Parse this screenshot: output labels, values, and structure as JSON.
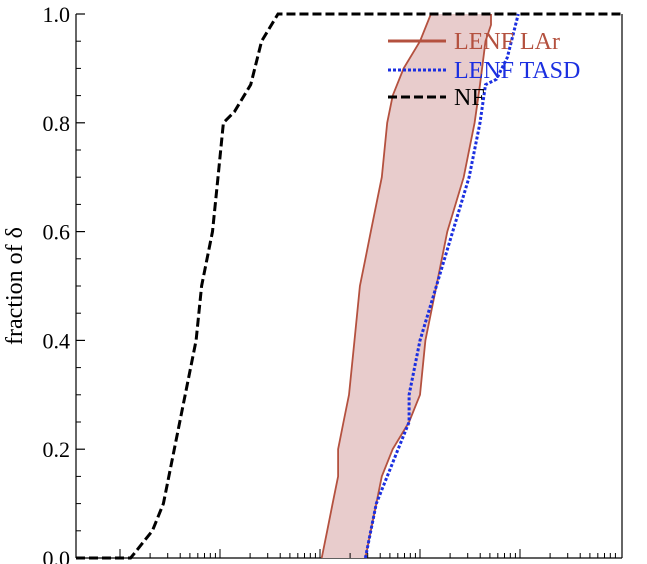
{
  "chart_data": {
    "type": "area",
    "title": "",
    "xlabel": "",
    "ylabel": "fraction of δ",
    "xscale": "log",
    "ylim": [
      0,
      1.0
    ],
    "yticks": [
      "0.0",
      "0.2",
      "0.4",
      "0.6",
      "0.8",
      "1.0"
    ],
    "grid": false,
    "legend_position": "top-right",
    "colors": {
      "lar": "#b4513f",
      "lar_fill": "#e8cccc",
      "tasd": "#1b2fe0",
      "nf": "#000000"
    },
    "series": [
      {
        "name": "NF",
        "style": "dashed",
        "points": [
          [
            0.0,
            0.0
          ],
          [
            0.1,
            0.0
          ],
          [
            0.14,
            0.05
          ],
          [
            0.16,
            0.1
          ],
          [
            0.18,
            0.2
          ],
          [
            0.2,
            0.3
          ],
          [
            0.22,
            0.4
          ],
          [
            0.23,
            0.5
          ],
          [
            0.25,
            0.6
          ],
          [
            0.26,
            0.7
          ],
          [
            0.27,
            0.8
          ],
          [
            0.29,
            0.82
          ],
          [
            0.32,
            0.87
          ],
          [
            0.34,
            0.95
          ],
          [
            0.37,
            1.0
          ],
          [
            1.0,
            1.0
          ]
        ]
      },
      {
        "name": "LENF TASD",
        "style": "dotted",
        "points": [
          [
            0.53,
            0.0
          ],
          [
            0.54,
            0.05
          ],
          [
            0.55,
            0.1
          ],
          [
            0.57,
            0.15
          ],
          [
            0.59,
            0.2
          ],
          [
            0.61,
            0.25
          ],
          [
            0.61,
            0.3
          ],
          [
            0.63,
            0.4
          ],
          [
            0.66,
            0.5
          ],
          [
            0.69,
            0.6
          ],
          [
            0.72,
            0.7
          ],
          [
            0.74,
            0.8
          ],
          [
            0.75,
            0.87
          ],
          [
            0.77,
            0.88
          ],
          [
            0.79,
            0.92
          ],
          [
            0.8,
            0.96
          ],
          [
            0.81,
            1.0
          ]
        ]
      },
      {
        "name": "LENF LAr",
        "style": "band",
        "lower": [
          [
            0.45,
            0.0
          ],
          [
            0.46,
            0.05
          ],
          [
            0.47,
            0.1
          ],
          [
            0.48,
            0.15
          ],
          [
            0.48,
            0.2
          ],
          [
            0.49,
            0.25
          ],
          [
            0.5,
            0.3
          ],
          [
            0.51,
            0.4
          ],
          [
            0.52,
            0.5
          ],
          [
            0.53,
            0.55
          ],
          [
            0.54,
            0.6
          ],
          [
            0.56,
            0.7
          ],
          [
            0.57,
            0.8
          ],
          [
            0.58,
            0.85
          ],
          [
            0.6,
            0.9
          ],
          [
            0.63,
            0.95
          ],
          [
            0.65,
            1.0
          ]
        ],
        "upper": [
          [
            0.53,
            0.0
          ],
          [
            0.54,
            0.05
          ],
          [
            0.56,
            0.15
          ],
          [
            0.58,
            0.2
          ],
          [
            0.61,
            0.25
          ],
          [
            0.63,
            0.3
          ],
          [
            0.64,
            0.4
          ],
          [
            0.66,
            0.5
          ],
          [
            0.68,
            0.6
          ],
          [
            0.71,
            0.7
          ],
          [
            0.73,
            0.8
          ],
          [
            0.74,
            0.87
          ],
          [
            0.75,
            0.95
          ],
          [
            0.76,
            0.98
          ],
          [
            0.76,
            1.0
          ]
        ]
      }
    ]
  }
}
